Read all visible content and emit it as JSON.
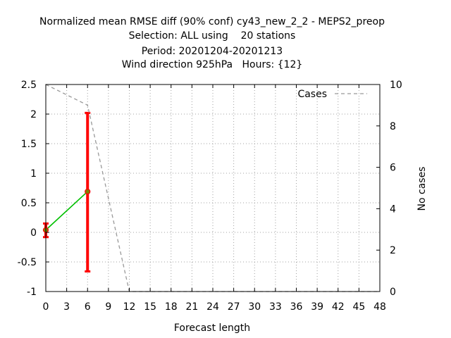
{
  "chart_data": {
    "type": "line",
    "title_lines": [
      "Normalized mean RMSE diff (90% conf) cy43_new_2_2 - MEPS2_preop",
      "Selection: ALL using    20 stations",
      "Period: 20201204-20201213",
      "Wind direction 925hPa   Hours: {12}"
    ],
    "xlabel": "Forecast length",
    "ylabel": "",
    "y2label": "No cases",
    "xlim": [
      0,
      48
    ],
    "ylim": [
      -1,
      2.5
    ],
    "y2lim": [
      0,
      10
    ],
    "x_ticks": [
      "0",
      "3",
      "6",
      "9",
      "12",
      "15",
      "18",
      "21",
      "24",
      "27",
      "30",
      "33",
      "36",
      "39",
      "42",
      "45",
      "48"
    ],
    "y_ticks": [
      "-1",
      "-0.5",
      "0",
      "0.5",
      "1",
      "1.5",
      "2",
      "2.5"
    ],
    "y2_ticks": [
      "0",
      "2",
      "4",
      "6",
      "8",
      "10"
    ],
    "grid": true,
    "legend_position": "top-right",
    "series": [
      {
        "name": "",
        "axis": "left",
        "color": "#00c000",
        "marker_color": "#808000",
        "x": [
          0,
          6
        ],
        "y": [
          0.04,
          0.69
        ],
        "err_low": [
          -0.08,
          -0.66
        ],
        "err_high": [
          0.15,
          2.02
        ],
        "err_color": "#ff0000"
      },
      {
        "name": "Cases",
        "axis": "right",
        "color": "#999999",
        "dashed": true,
        "x": [
          0,
          6,
          12,
          18,
          24,
          30,
          36,
          42,
          48
        ],
        "y": [
          10,
          9,
          0,
          0,
          0,
          0,
          0,
          0,
          0
        ]
      }
    ]
  }
}
